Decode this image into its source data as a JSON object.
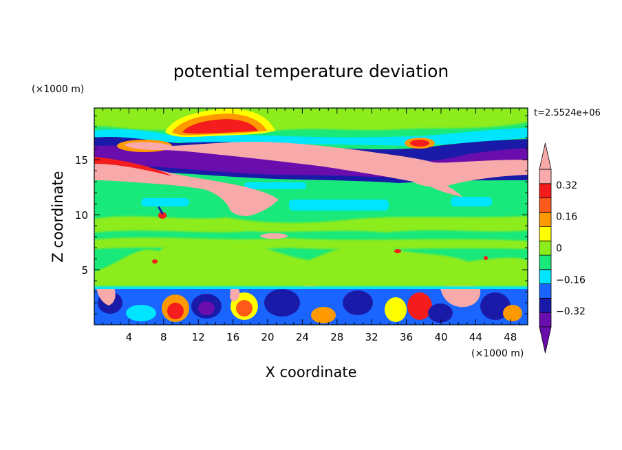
{
  "chart_data": {
    "type": "heatmap",
    "title": "potential temperature deviation",
    "xlabel": "X coordinate",
    "ylabel": "Z coordinate",
    "x_unit": "(×1000 m)",
    "y_unit": "(×1000 m)",
    "time_label": "t=2.5524e+06",
    "xlim": [
      0,
      50
    ],
    "ylim": [
      0,
      19.7
    ],
    "x_ticks": [
      4,
      8,
      12,
      16,
      20,
      24,
      28,
      32,
      36,
      40,
      44,
      48
    ],
    "y_ticks": [
      5,
      10,
      15
    ],
    "colorbar": {
      "levels": [
        -0.4,
        -0.32,
        -0.24,
        -0.16,
        -0.08,
        0,
        0.08,
        0.16,
        0.24,
        0.32,
        0.4
      ],
      "labels": [
        "0.32",
        "0.16",
        "0",
        "−0.16",
        "−0.32"
      ],
      "label_values": [
        0.32,
        0.16,
        0,
        -0.16,
        -0.32
      ],
      "colors": [
        "#6a0dad",
        "#1a1aa8",
        "#1a64ff",
        "#00e5ff",
        "#19e87a",
        "#8cec1c",
        "#ffff00",
        "#ff9900",
        "#ff5a1a",
        "#f41c1c",
        "#f8a9a9"
      ],
      "extend": "both"
    },
    "fields": [
      {
        "name": "background",
        "value": 0.04
      },
      {
        "name": "upper_band_purple",
        "value": -0.45
      },
      {
        "name": "upper_band_pink",
        "value": 0.45
      },
      {
        "name": "warm_arc",
        "value": 0.3
      },
      {
        "name": "mid_level_green",
        "value": 0.02
      },
      {
        "name": "lower_light_green",
        "value": 0.05
      },
      {
        "name": "boundary_layer_mixed",
        "value": -0.2
      }
    ]
  }
}
